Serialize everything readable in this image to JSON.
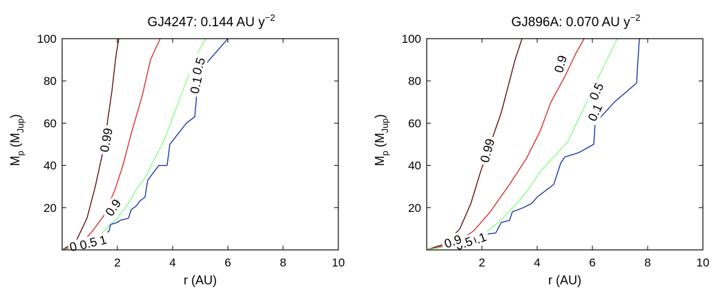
{
  "chart_data": [
    {
      "type": "line",
      "title": "GJ4247:  0.144 AU y",
      "title_sup": "−2",
      "xlabel": "r (AU)",
      "ylabel_main": "M",
      "ylabel_sub1": "p",
      "ylabel_mid": " (M",
      "ylabel_sub2": "Jup",
      "ylabel_end": ")",
      "xlim": [
        0,
        10
      ],
      "ylim": [
        0,
        100
      ],
      "xticks": [
        2,
        4,
        6,
        8,
        10
      ],
      "yticks": [
        20,
        40,
        60,
        80,
        100
      ],
      "grid": false,
      "series": [
        {
          "name": "0.99",
          "color": "#5a0000",
          "x": [
            0,
            0.5,
            0.9,
            1.2,
            1.45,
            1.6,
            1.8,
            1.95,
            2.05
          ],
          "y": [
            0,
            4,
            15,
            30,
            45,
            57,
            75,
            92,
            100
          ]
        },
        {
          "name": "0.9",
          "color": "#d42020",
          "x": [
            0,
            0.7,
            1.1,
            1.5,
            1.9,
            2.2,
            2.5,
            2.9,
            3.2,
            3.55
          ],
          "y": [
            0,
            3,
            9,
            16,
            28,
            40,
            55,
            73,
            90,
            100
          ]
        },
        {
          "name": "0.5",
          "color": "#7fff7f",
          "x": [
            0,
            0.8,
            1.2,
            1.6,
            2.0,
            2.4,
            2.7,
            3.0,
            3.3,
            3.7,
            4.1,
            4.5,
            4.9,
            5.2
          ],
          "y": [
            0,
            2,
            5,
            10,
            15,
            22,
            29,
            34,
            42,
            52,
            66,
            80,
            93,
            100
          ]
        },
        {
          "name": "0.1",
          "color": "#0a2aa6",
          "x": [
            1.5,
            1.6,
            1.7,
            1.75,
            2.0,
            2.1,
            2.4,
            2.5,
            2.7,
            2.8,
            3.0,
            3.05,
            3.1,
            3.5,
            3.8,
            3.9,
            4.2,
            4.5,
            4.8,
            4.85,
            4.9,
            5.2,
            5.6,
            6.0
          ],
          "y": [
            7,
            8,
            9,
            12,
            13,
            14,
            15,
            19,
            21,
            23,
            25,
            29,
            33,
            40,
            40,
            50,
            55,
            60,
            63,
            70,
            80,
            88,
            94,
            100
          ]
        }
      ],
      "contour_labels": [
        {
          "text": "0.99",
          "x": 1.6,
          "y": 52,
          "angle": -80
        },
        {
          "text": "0.9",
          "x": 1.85,
          "y": 20,
          "angle": -55
        },
        {
          "text": "0.5",
          "x": 4.95,
          "y": 87,
          "angle": -73
        },
        {
          "text": "0.1",
          "x": 4.85,
          "y": 78,
          "angle": -78
        },
        {
          "text": "0.1",
          "x": 1.3,
          "y": 4,
          "angle": -15
        },
        {
          "text": "0.5",
          "x": 0.95,
          "y": 3,
          "angle": -15
        },
        {
          "text": "0",
          "x": 0.4,
          "y": 1.5,
          "angle": -15
        }
      ]
    },
    {
      "type": "line",
      "title": "GJ896A:  0.070 AU y",
      "title_sup": "−2",
      "xlabel": "r (AU)",
      "ylabel_main": "M",
      "ylabel_sub1": "p",
      "ylabel_mid": " (M",
      "ylabel_sub2": "Jup",
      "ylabel_end": ")",
      "xlim": [
        0,
        10
      ],
      "ylim": [
        0,
        100
      ],
      "xticks": [
        2,
        4,
        6,
        8,
        10
      ],
      "yticks": [
        20,
        40,
        60,
        80,
        100
      ],
      "grid": false,
      "series": [
        {
          "name": "0.99",
          "color": "#5a0000",
          "x": [
            0,
            0.7,
            1.2,
            1.6,
            1.95,
            2.3,
            2.7,
            3.0,
            3.2,
            3.45
          ],
          "y": [
            0,
            3,
            10,
            22,
            37,
            50,
            65,
            80,
            90,
            100
          ]
        },
        {
          "name": "0.9",
          "color": "#d42020",
          "x": [
            0,
            1.0,
            1.7,
            2.3,
            3.0,
            3.6,
            4.1,
            4.5,
            5.0,
            5.4,
            5.7
          ],
          "y": [
            0,
            3,
            9,
            18,
            31,
            43,
            56,
            70,
            82,
            93,
            100
          ]
        },
        {
          "name": "0.5",
          "color": "#7fff7f",
          "x": [
            0,
            1.3,
            2.0,
            2.6,
            3.2,
            3.7,
            4.1,
            4.6,
            5.1,
            5.5,
            5.9,
            6.3,
            6.6,
            6.9
          ],
          "y": [
            0,
            3,
            7,
            13,
            21,
            29,
            37,
            44,
            51,
            62,
            73,
            84,
            92,
            100
          ]
        },
        {
          "name": "0.1",
          "color": "#0a2aa6",
          "x": [
            1.9,
            2.5,
            2.7,
            3.0,
            3.1,
            3.5,
            3.8,
            4.0,
            4.6,
            4.7,
            4.85,
            5.0,
            5.5,
            6.05,
            6.1,
            6.8,
            7.6,
            7.65,
            7.7
          ],
          "y": [
            7,
            8,
            13,
            14,
            18,
            20,
            22,
            25,
            31,
            35,
            41,
            44,
            46,
            50,
            60,
            70,
            79,
            90,
            100
          ]
        }
      ],
      "contour_labels": [
        {
          "text": "0.99",
          "x": 2.2,
          "y": 47,
          "angle": -75
        },
        {
          "text": "0.9",
          "x": 4.85,
          "y": 88,
          "angle": -75
        },
        {
          "text": "0.5",
          "x": 6.15,
          "y": 75,
          "angle": -65
        },
        {
          "text": "0.1",
          "x": 6.1,
          "y": 65,
          "angle": -65
        },
        {
          "text": "0.1",
          "x": 1.85,
          "y": 5,
          "angle": -20
        },
        {
          "text": "0.5",
          "x": 1.35,
          "y": 3,
          "angle": -20
        },
        {
          "text": "0.9",
          "x": 0.95,
          "y": 4,
          "angle": -20
        }
      ]
    }
  ]
}
